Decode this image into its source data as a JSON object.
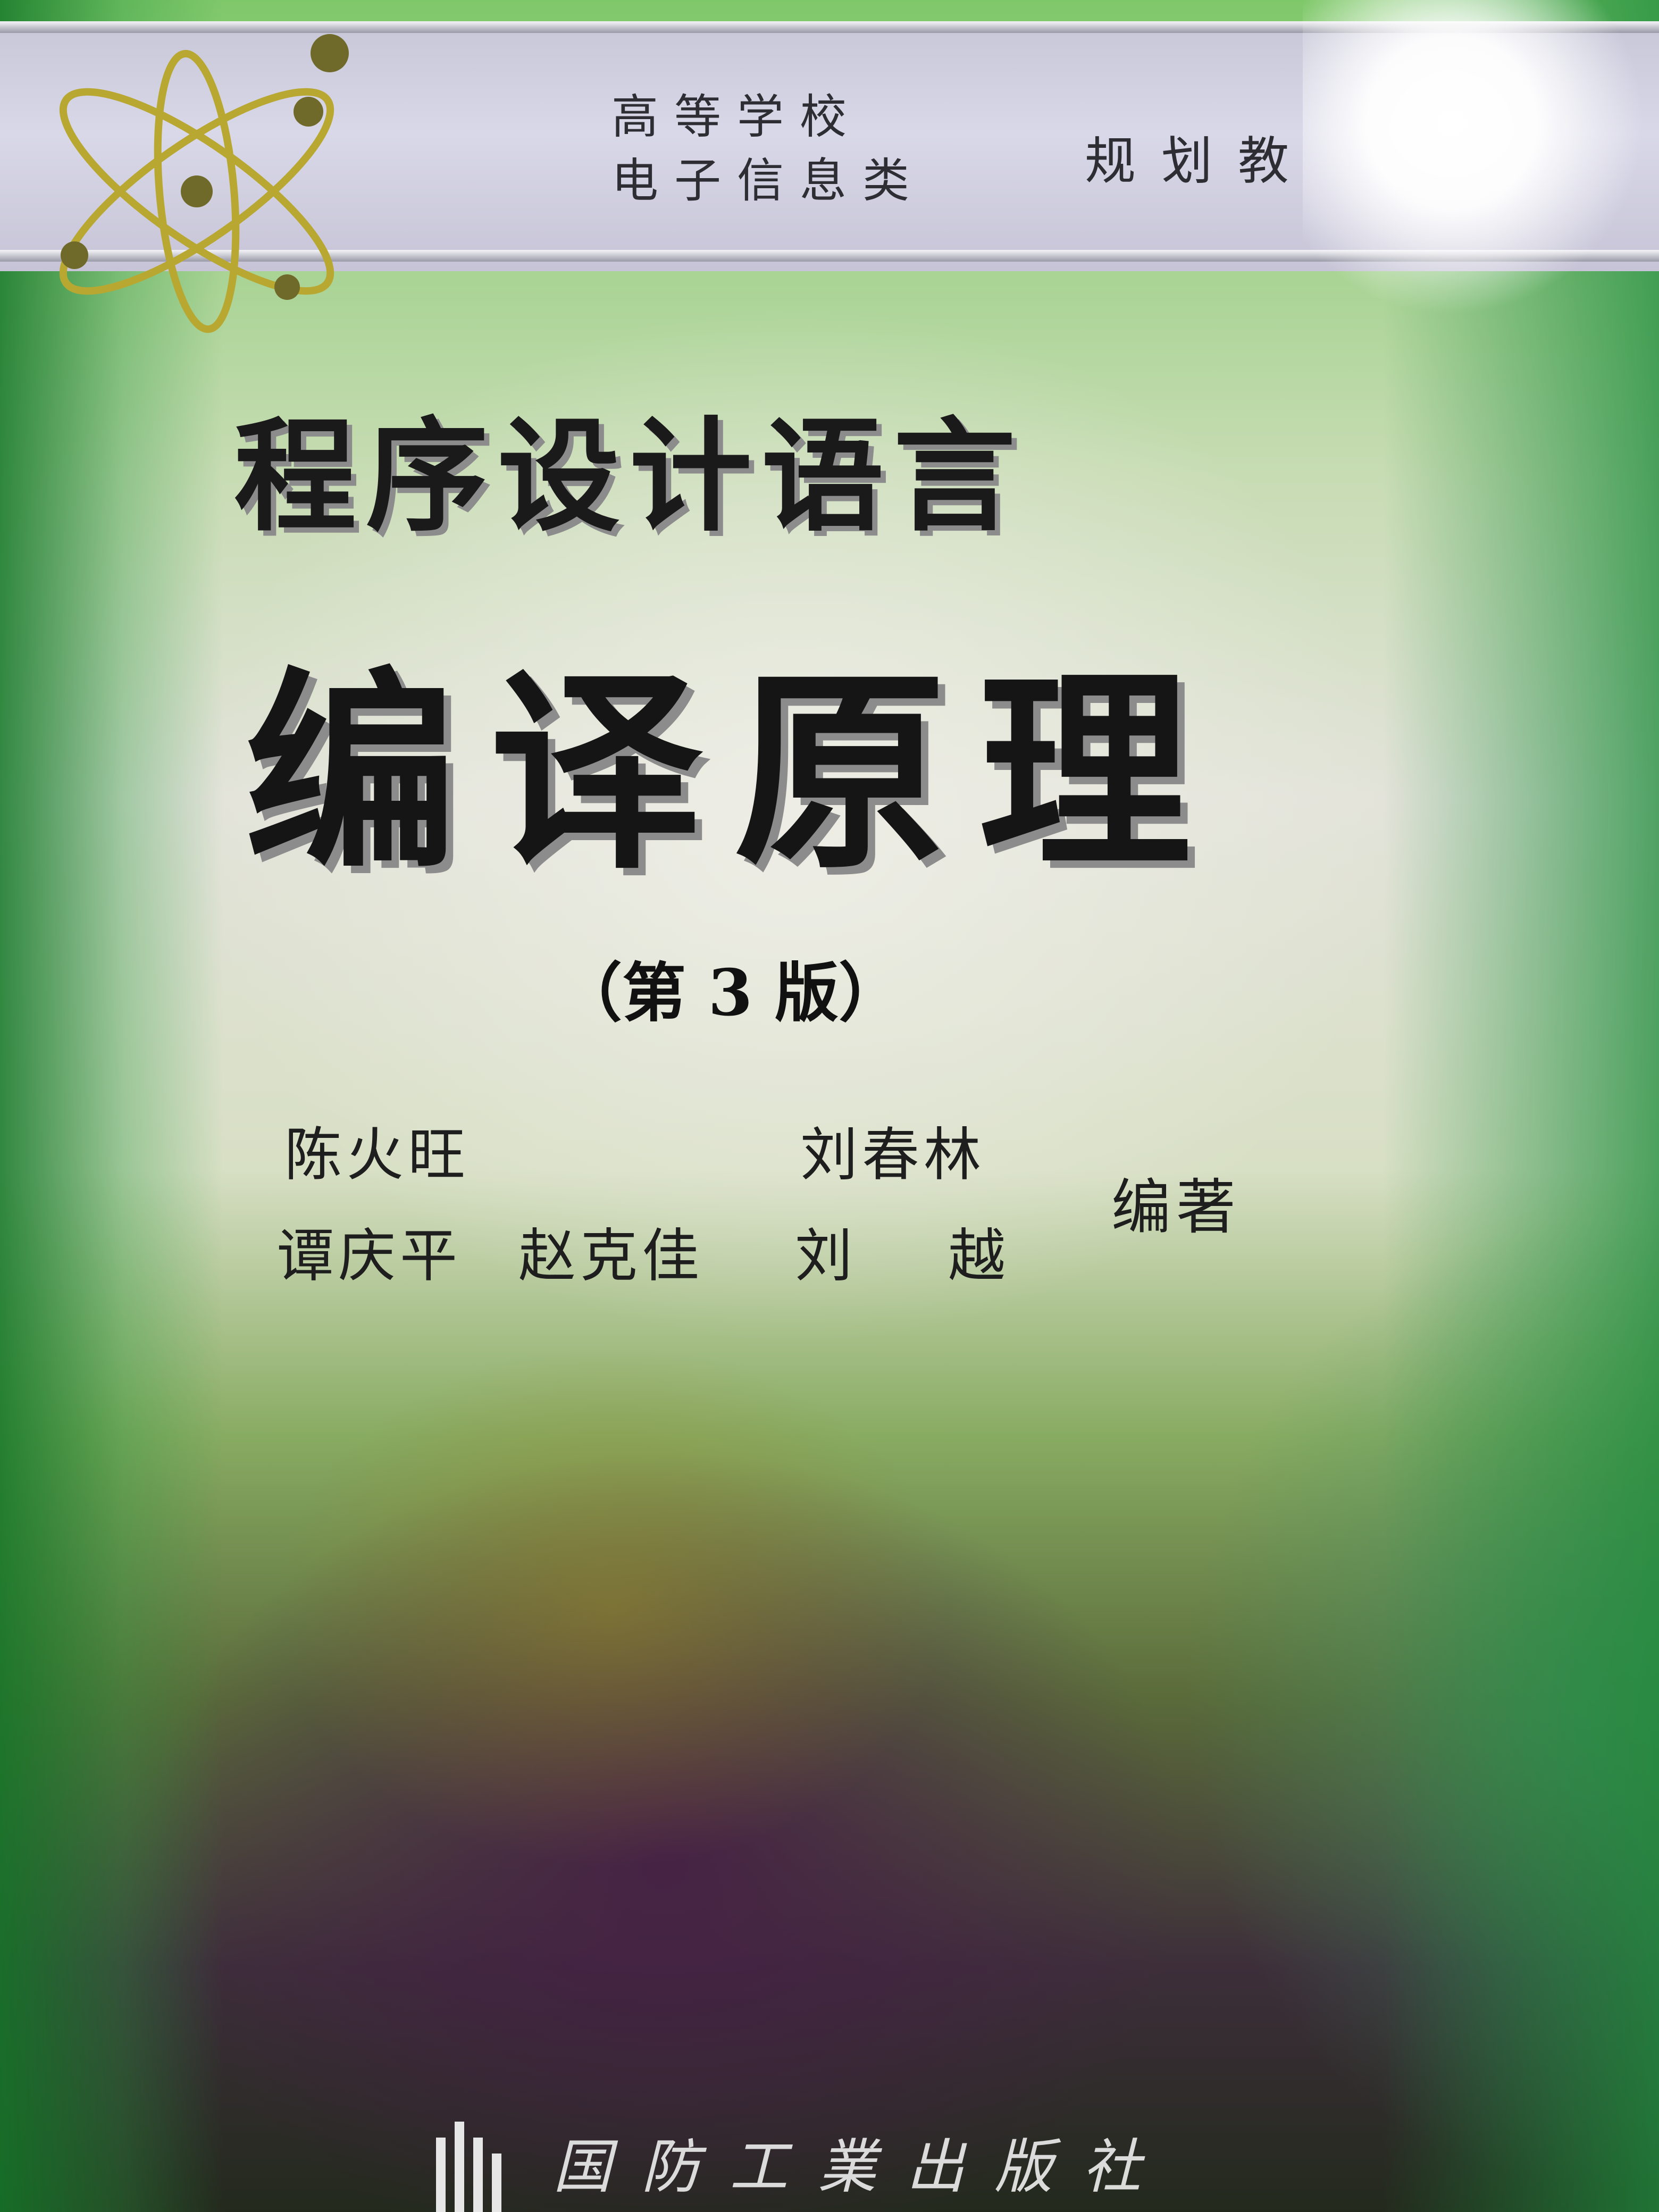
{
  "cover": {
    "series": {
      "line1": "高等学校",
      "line2": "电子信息类",
      "plan": "规划教"
    },
    "title_line1": "程序设计语言",
    "title_line2": "编译原理",
    "edition": "（第 3 版）",
    "authors": {
      "a1": "陈火旺",
      "a2": "刘春林",
      "a3": "谭庆平",
      "a4": "赵克佳",
      "a5": "刘越"
    },
    "role": "编著",
    "publisher": "国防工業出版社"
  },
  "colors": {
    "banner": "#d9d8e8",
    "green": "#7fc86a",
    "title": "#151515"
  },
  "icons": [
    "atom-logo-icon",
    "publisher-logo-icon"
  ]
}
